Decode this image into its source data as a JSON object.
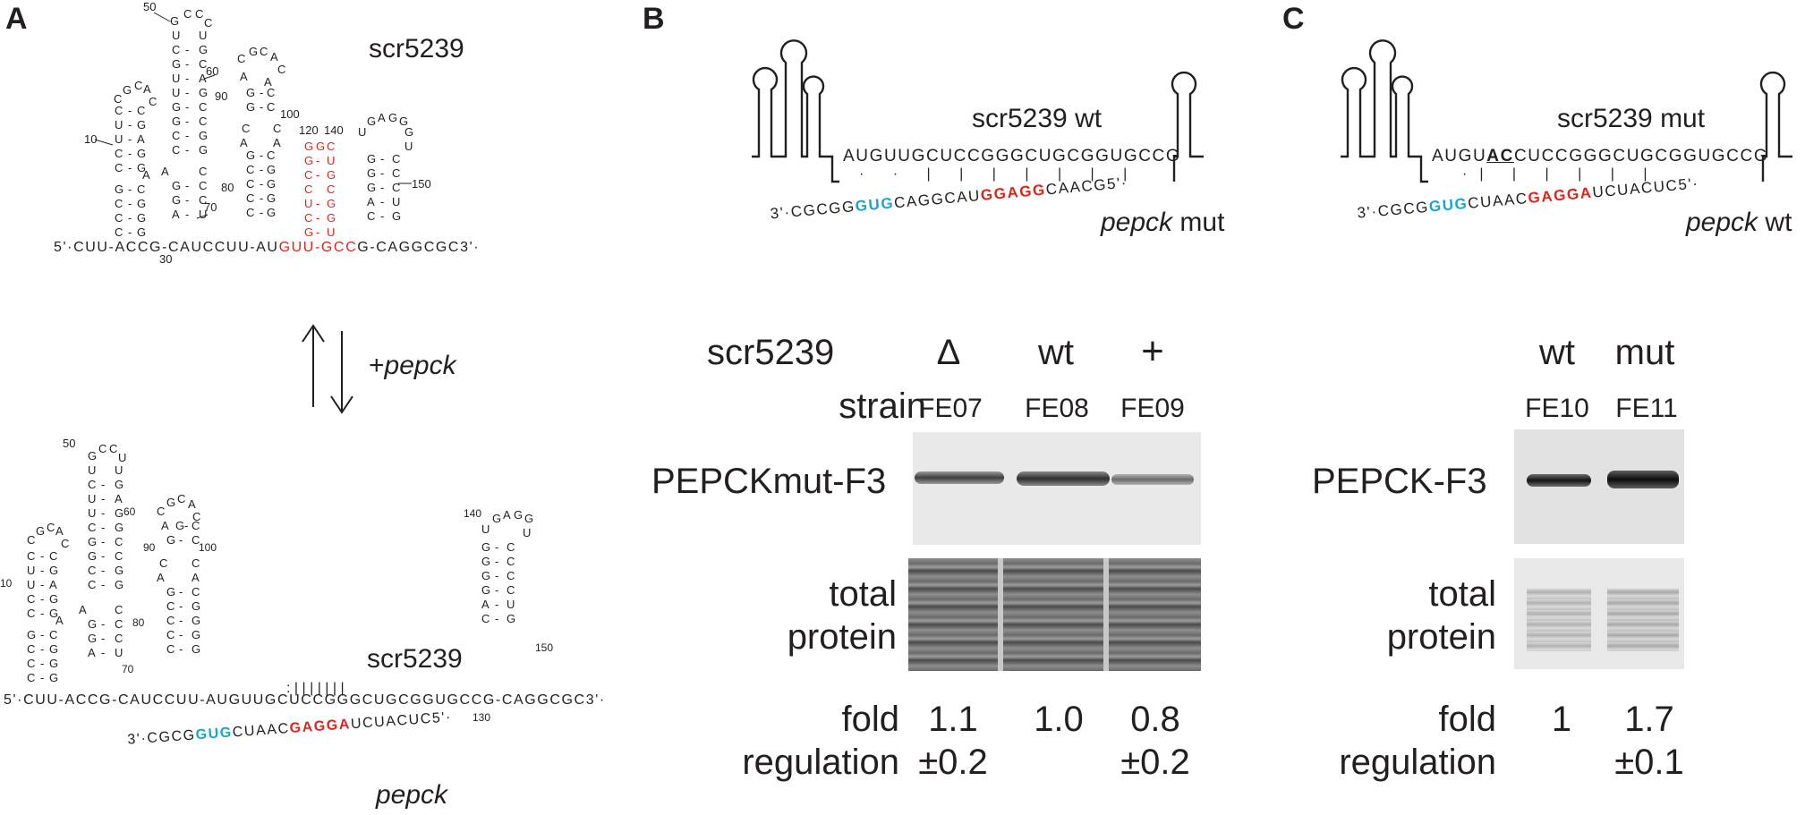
{
  "panels": {
    "a": {
      "letter": "A",
      "top_label": "scr5239",
      "bottom_label": "scr5239",
      "arrow_label_prefix": "+",
      "arrow_label_italic": "pepck",
      "pepck_label": "pepck",
      "top_backbone_left": "5'·CUU-ACCG-CAUCCUU-AU",
      "top_backbone_red": "GUU-GCC",
      "top_backbone_right": "G-CAGGCGC3'·",
      "bottom_backbone": "5'·CUU-ACCG-CAUCCUU-AUGUUGCUCCGGGCUGCGGUGCCG-CAGGCGC3'·",
      "bottom_pepck_pre": "3'·CGCG",
      "bottom_pepck_blue": "GUG",
      "bottom_pepck_mid": "CUAAC",
      "bottom_pepck_red": "GAGGA",
      "bottom_pepck_post": "UCUACUC5'·",
      "position_numbers": [
        "50",
        "60",
        "90",
        "100",
        "120",
        "140",
        "10",
        "80",
        "150",
        "70",
        "30",
        "50",
        "60",
        "90",
        "100",
        "140",
        "10",
        "80",
        "150",
        "70",
        "130"
      ]
    },
    "b": {
      "letter": "B",
      "construct_label": "scr5239 wt",
      "target_label_italic": "pepck",
      "target_label_suffix": " mut",
      "srna_seq": "AUGUUGCUCCGGGCUGCGGUGCCG",
      "target_pre": "3'·CGCGG",
      "target_blue": "GUG",
      "target_mid": "CAGGCAU",
      "target_red": "GGAGG",
      "target_post": "CAACG5'·",
      "row_label_scr": "scr5239",
      "conditions": [
        "Δ",
        "wt",
        "+"
      ],
      "row_label_strain": "strain",
      "strains": [
        "FE07",
        "FE08",
        "FE09"
      ],
      "blot_label": "PEPCKmut-F3",
      "loading_label_1": "total",
      "loading_label_2": "protein",
      "fold_label_1": "fold",
      "fold_label_2": "regulation",
      "fold_values": [
        "1.1",
        "1.0",
        "0.8"
      ],
      "fold_errors": [
        "±0.2",
        "",
        "±0.2"
      ]
    },
    "c": {
      "letter": "C",
      "construct_label": "scr5239 mut",
      "target_label_italic": "pepck",
      "target_label_suffix": " wt",
      "srna_pre": "AUGU",
      "srna_bold": "AC",
      "srna_post": "CUCCGGGCUGCGGUGCCG",
      "target_pre": "3'·CGCG",
      "target_blue": "GUG",
      "target_mid": "CUAAC",
      "target_red": "GAGGA",
      "target_post": "UCUACUC5'·",
      "conditions": [
        "wt",
        "mut"
      ],
      "strains": [
        "FE10",
        "FE11"
      ],
      "blot_label": "PEPCK-F3",
      "loading_label_1": "total",
      "loading_label_2": "protein",
      "fold_label_1": "fold",
      "fold_label_2": "regulation",
      "fold_values": [
        "1",
        "1.7"
      ],
      "fold_errors": [
        "",
        "±0.1"
      ]
    }
  },
  "colors": {
    "seed_red": "#e0241b",
    "seed_blue": "#1aa6cc",
    "text": "#231f20"
  }
}
